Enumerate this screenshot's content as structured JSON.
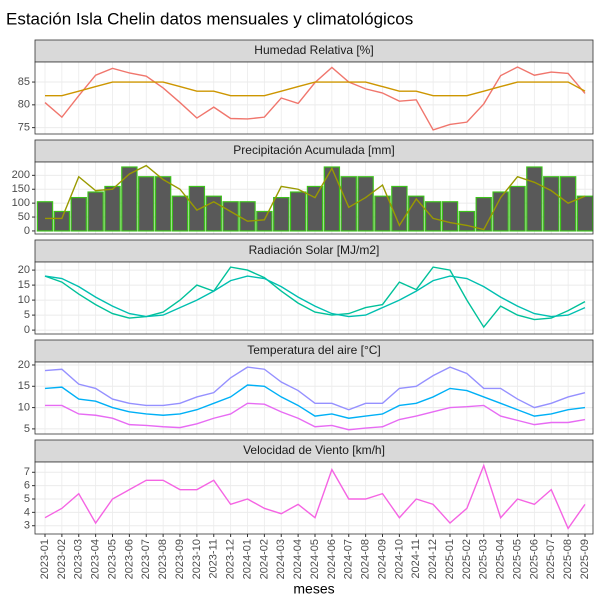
{
  "title": "Estación Isla Chelin datos mensuales y climatológicos",
  "xlabel": "meses",
  "chart_data": [
    {
      "type": "line",
      "title": "Humedad Relativa [%]",
      "ylim": [
        73.6,
        89.4
      ],
      "yticks": [
        75,
        80,
        85
      ],
      "grid": true,
      "series": [
        {
          "color": "#f0766d",
          "values": [
            80.5,
            77.3,
            82,
            86.5,
            88,
            87,
            86.3,
            83.7,
            80.5,
            77.1,
            79.5,
            77,
            76.9,
            77.3,
            81.5,
            80.3,
            84.9,
            88.2,
            85,
            83.5,
            82.6,
            80.8,
            81.1,
            74.5,
            75.7,
            76.2,
            80.2,
            86.4,
            88.3,
            86.5,
            87.2,
            86.9,
            82.5
          ]
        },
        {
          "color": "#cd9600",
          "values": [
            82,
            82,
            83,
            84,
            85,
            85,
            85,
            85,
            84,
            83,
            83,
            82,
            82,
            82,
            83,
            84,
            85,
            85,
            85,
            85,
            84,
            83,
            83,
            82,
            82,
            82,
            83,
            84,
            85,
            85,
            85,
            85,
            83
          ]
        }
      ]
    },
    {
      "type": "bar",
      "title": "Precipitación Acumulada [mm]",
      "ylim": [
        -11,
        248
      ],
      "yticks": [
        0,
        50,
        100,
        150,
        200
      ],
      "grid": true,
      "series": [
        {
          "type": "bar",
          "color": "#595959",
          "edgecolor": "#3dc21b",
          "values": [
            105,
            70,
            120,
            140,
            160,
            230,
            195,
            195,
            125,
            160,
            125,
            105,
            105,
            70,
            120,
            140,
            160,
            230,
            195,
            195,
            125,
            160,
            125,
            105,
            105,
            70,
            120,
            140,
            160,
            230,
            195,
            195,
            125
          ]
        },
        {
          "type": "line",
          "color": "#9a9a00",
          "values": [
            45,
            45,
            195,
            145,
            150,
            205,
            235,
            185,
            150,
            75,
            105,
            70,
            35,
            40,
            160,
            150,
            120,
            225,
            85,
            120,
            165,
            20,
            115,
            45,
            30,
            20,
            5,
            120,
            195,
            175,
            145,
            100,
            125
          ]
        }
      ]
    },
    {
      "type": "line",
      "title": "Radiación Solar [MJ/m2]",
      "ylim": [
        -1.3,
        22.7
      ],
      "yticks": [
        0,
        5,
        10,
        15,
        20
      ],
      "grid": true,
      "series": [
        {
          "color": "#00c19a",
          "values": [
            18,
            16,
            12,
            8.5,
            5.5,
            4,
            4.5,
            6,
            10,
            15,
            13,
            21,
            20,
            17.5,
            13,
            9,
            6,
            5,
            5.5,
            7.5,
            8.5,
            16,
            13.5,
            21,
            20,
            10,
            1,
            8,
            5,
            3.5,
            4,
            6.5,
            9.5
          ]
        },
        {
          "color": "#00bfb0",
          "values": [
            18,
            17.2,
            14.5,
            11,
            8,
            5.5,
            4.5,
            5,
            7.5,
            10,
            13,
            16.5,
            18,
            17.2,
            14.5,
            11,
            8,
            5.5,
            4.5,
            5,
            7.5,
            10,
            13,
            16.5,
            18,
            17.2,
            14.5,
            11,
            8,
            5.5,
            4.5,
            5,
            7.5
          ]
        }
      ]
    },
    {
      "type": "line",
      "title": "Temperatura del aire [°C]",
      "ylim": [
        3.8,
        20.7
      ],
      "yticks": [
        5,
        10,
        15,
        20
      ],
      "grid": true,
      "series": [
        {
          "color": "#9590ff",
          "values": [
            18.7,
            19,
            15.5,
            14.5,
            12,
            11,
            10.5,
            10.5,
            11,
            12.5,
            13.5,
            17,
            19.5,
            19,
            16,
            14,
            11,
            11,
            9.5,
            11,
            11,
            14.5,
            15,
            17.5,
            19.5,
            18,
            14.5,
            14.5,
            12,
            10,
            11,
            12.5,
            13.5
          ]
        },
        {
          "color": "#00b0f6",
          "values": [
            14.5,
            14.8,
            12,
            11.5,
            10,
            9,
            8.5,
            8.2,
            8.5,
            9.5,
            11,
            12.5,
            15.3,
            15,
            12.5,
            10.5,
            8,
            8.5,
            7.5,
            8,
            8.5,
            10.5,
            11,
            12.5,
            14.5,
            14,
            12.5,
            11,
            9.5,
            8,
            8.5,
            9.5,
            10
          ]
        },
        {
          "color": "#e76bf3",
          "values": [
            10.5,
            10.5,
            8.5,
            8.2,
            7.5,
            6,
            5.8,
            5.5,
            5.3,
            6.2,
            7.5,
            8.5,
            11,
            10.8,
            9,
            7.5,
            5.5,
            5.8,
            4.8,
            5.2,
            5.5,
            7.2,
            8,
            9,
            10,
            10.2,
            10.5,
            8,
            7,
            6,
            6.5,
            6.5,
            7.2
          ]
        }
      ]
    },
    {
      "type": "line",
      "title": "Velocidad de Viento [km/h]",
      "ylim": [
        2.38,
        7.77
      ],
      "yticks": [
        3,
        4,
        5,
        6,
        7
      ],
      "grid": true,
      "categories": [
        "2023-01",
        "2023-02",
        "2023-03",
        "2023-04",
        "2023-05",
        "2023-06",
        "2023-07",
        "2023-08",
        "2023-09",
        "2023-10",
        "2023-11",
        "2023-12",
        "2024-01",
        "2024-02",
        "2024-03",
        "2024-04",
        "2024-05",
        "2024-06",
        "2024-07",
        "2024-08",
        "2024-09",
        "2024-10",
        "2024-11",
        "2024-12",
        "2025-01",
        "2025-02",
        "2025-03",
        "2025-04",
        "2025-05",
        "2025-06",
        "2025-07",
        "2025-08",
        "2025-09"
      ],
      "series": [
        {
          "color": "#f564e3",
          "values": [
            3.6,
            4.3,
            5.4,
            3.2,
            5,
            5.7,
            6.4,
            6.4,
            5.7,
            5.7,
            6.4,
            4.6,
            5,
            4.3,
            3.9,
            4.6,
            3.6,
            7.2,
            5,
            5,
            5.4,
            3.6,
            5,
            4.6,
            3.2,
            4.3,
            7.5,
            3.6,
            5,
            4.6,
            5.7,
            2.8,
            4.6
          ]
        }
      ]
    }
  ]
}
